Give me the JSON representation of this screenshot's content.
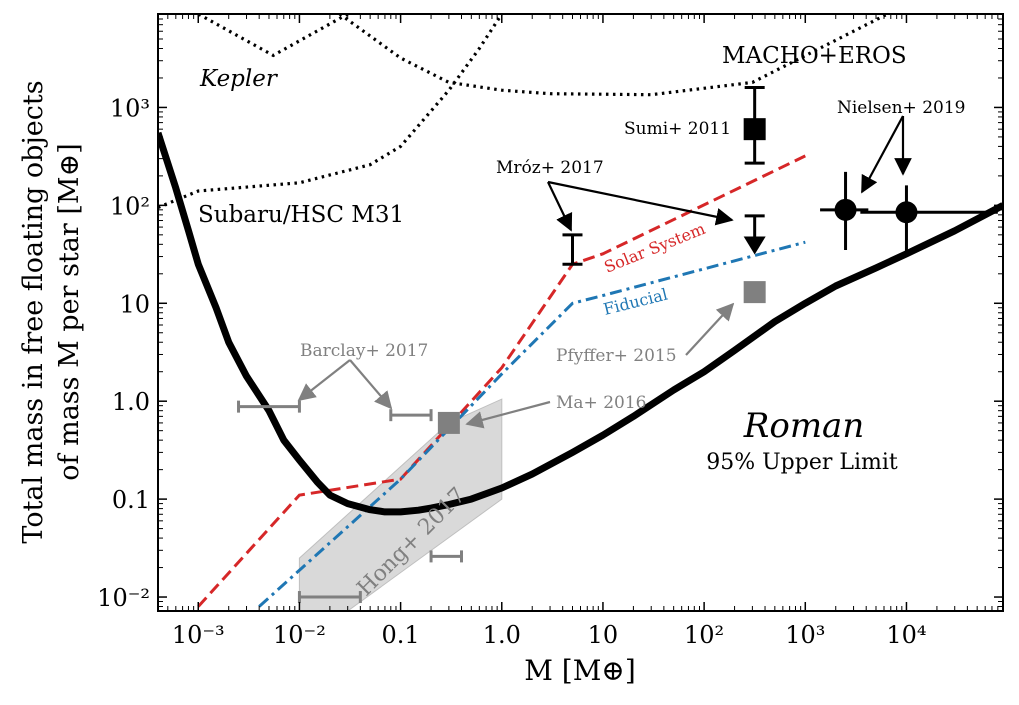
{
  "chart_data": {
    "type": "line",
    "xscale": "log",
    "yscale": "log",
    "xlim": [
      0.0004,
      90000
    ],
    "ylim": [
      0.0072,
      9000
    ],
    "xlabel": "M [M⊕]",
    "ylabel_line1": "Total mass in free floating objects",
    "ylabel_line2": "of mass M per star [M⊕]",
    "xticks": [
      {
        "v": 0.001,
        "label": "10⁻³"
      },
      {
        "v": 0.01,
        "label": "10⁻²"
      },
      {
        "v": 0.1,
        "label": "0.1"
      },
      {
        "v": 1,
        "label": "1.0"
      },
      {
        "v": 10,
        "label": "10"
      },
      {
        "v": 100,
        "label": "10²"
      },
      {
        "v": 1000,
        "label": "10³"
      },
      {
        "v": 10000,
        "label": "10⁴"
      }
    ],
    "yticks": [
      {
        "v": 0.01,
        "label": "10⁻²"
      },
      {
        "v": 0.1,
        "label": "0.1"
      },
      {
        "v": 1,
        "label": "1.0"
      },
      {
        "v": 10,
        "label": "10"
      },
      {
        "v": 100,
        "label": "10²"
      },
      {
        "v": 1000,
        "label": "10³"
      }
    ],
    "colors": {
      "black": "#000000",
      "red": "#d62728",
      "blue": "#1f77b4",
      "gray": "#808080",
      "shade": "#d3d3d3"
    },
    "roman_curve": {
      "label": "Roman",
      "sublabel": "95% Upper Limit",
      "points": [
        [
          0.0004,
          550
        ],
        [
          0.0006,
          150
        ],
        [
          0.0008,
          55
        ],
        [
          0.001,
          25
        ],
        [
          0.0015,
          9
        ],
        [
          0.002,
          4
        ],
        [
          0.003,
          1.8
        ],
        [
          0.005,
          0.8
        ],
        [
          0.007,
          0.4
        ],
        [
          0.01,
          0.25
        ],
        [
          0.015,
          0.15
        ],
        [
          0.02,
          0.11
        ],
        [
          0.03,
          0.09
        ],
        [
          0.05,
          0.078
        ],
        [
          0.07,
          0.074
        ],
        [
          0.1,
          0.074
        ],
        [
          0.15,
          0.077
        ],
        [
          0.2,
          0.081
        ],
        [
          0.3,
          0.088
        ],
        [
          0.5,
          0.1
        ],
        [
          1,
          0.13
        ],
        [
          2,
          0.18
        ],
        [
          5,
          0.3
        ],
        [
          10,
          0.45
        ],
        [
          20,
          0.7
        ],
        [
          50,
          1.3
        ],
        [
          100,
          2
        ],
        [
          200,
          3.3
        ],
        [
          500,
          6.5
        ],
        [
          1000,
          10
        ],
        [
          2000,
          15
        ],
        [
          5000,
          23
        ],
        [
          10000,
          32
        ],
        [
          30000,
          55
        ],
        [
          90000,
          100
        ]
      ]
    },
    "solar_system": {
      "label": "Solar System",
      "points": [
        [
          0.001,
          0.008
        ],
        [
          0.01,
          0.11
        ],
        [
          0.1,
          0.16
        ],
        [
          1,
          2.2
        ],
        [
          5,
          25
        ],
        [
          10,
          32
        ],
        [
          1000,
          320
        ]
      ]
    },
    "fiducial": {
      "label": "Fiducial",
      "points": [
        [
          0.004,
          0.008
        ],
        [
          0.1,
          0.16
        ],
        [
          1,
          1.9
        ],
        [
          5,
          10
        ],
        [
          10,
          12
        ],
        [
          1000,
          42
        ]
      ]
    },
    "dotted_curves": [
      {
        "name": "kepler",
        "points": [
          [
            0.03,
            9000
          ],
          [
            0.0055,
            3400
          ],
          [
            0.001,
            9000
          ]
        ]
      },
      {
        "name": "kepler-right",
        "points": [
          [
            0.025,
            9000
          ],
          [
            0.1,
            3200
          ],
          [
            0.3,
            1800
          ],
          [
            1,
            1500
          ],
          [
            3,
            1380
          ],
          [
            30,
            1350
          ],
          [
            300,
            1800
          ],
          [
            3000,
            6000
          ],
          [
            6500,
            9000
          ]
        ]
      },
      {
        "name": "subaru",
        "points": [
          [
            0.0004,
            95
          ],
          [
            0.001,
            140
          ],
          [
            0.01,
            170
          ],
          [
            0.05,
            260
          ],
          [
            0.1,
            400
          ],
          [
            0.3,
            1500
          ],
          [
            0.6,
            4000
          ],
          [
            1,
            9000
          ]
        ]
      }
    ],
    "hong_band": {
      "label": "Hong+ 2017",
      "polygon": [
        [
          0.01,
          0.0072
        ],
        [
          0.01,
          0.025
        ],
        [
          0.3,
          0.6
        ],
        [
          1,
          1.05
        ],
        [
          1,
          0.1
        ],
        [
          0.03,
          0.0072
        ]
      ]
    },
    "labels": {
      "kepler": "Kepler",
      "subaru": "Subaru/HSC M31",
      "macho": "MACHO+EROS",
      "sumi": "Sumi+ 2011",
      "mroz": "Mróz+ 2017",
      "nielsen": "Nielsen+ 2019",
      "barclay": "Barclay+ 2017",
      "ma": "Ma+ 2016",
      "pfyffer": "Pfyffer+ 2015"
    },
    "points": {
      "sumi": {
        "x": 316,
        "y": 600,
        "ylo": 270,
        "yhi": 1600
      },
      "mroz_a": {
        "x": 5,
        "ylo": 25,
        "yhi": 50
      },
      "mroz_b": {
        "x": 316,
        "yup": 78,
        "ylimit": 38
      },
      "nielsen_a": {
        "x": 2500,
        "y": 90,
        "ylo": 35,
        "yhi": 220,
        "xlo": 1400,
        "xhi": 4200
      },
      "nielsen_b": {
        "x": 10000,
        "y": 85,
        "ylo": 30,
        "yhi": 160,
        "xlo": 3500,
        "xhi": 80000
      },
      "pfyffer": {
        "x": 316,
        "y": 13
      },
      "ma": {
        "x": 0.3,
        "y": 0.6
      },
      "barclay_a": {
        "x1": 0.0025,
        "x2": 0.01,
        "y": 0.88
      },
      "barclay_b": {
        "x1": 0.08,
        "x2": 0.2,
        "y": 0.72
      },
      "hong_a": {
        "x1": 0.01,
        "x2": 0.04,
        "y": 0.01
      },
      "hong_b": {
        "x1": 0.2,
        "x2": 0.4,
        "y": 0.026
      }
    }
  }
}
